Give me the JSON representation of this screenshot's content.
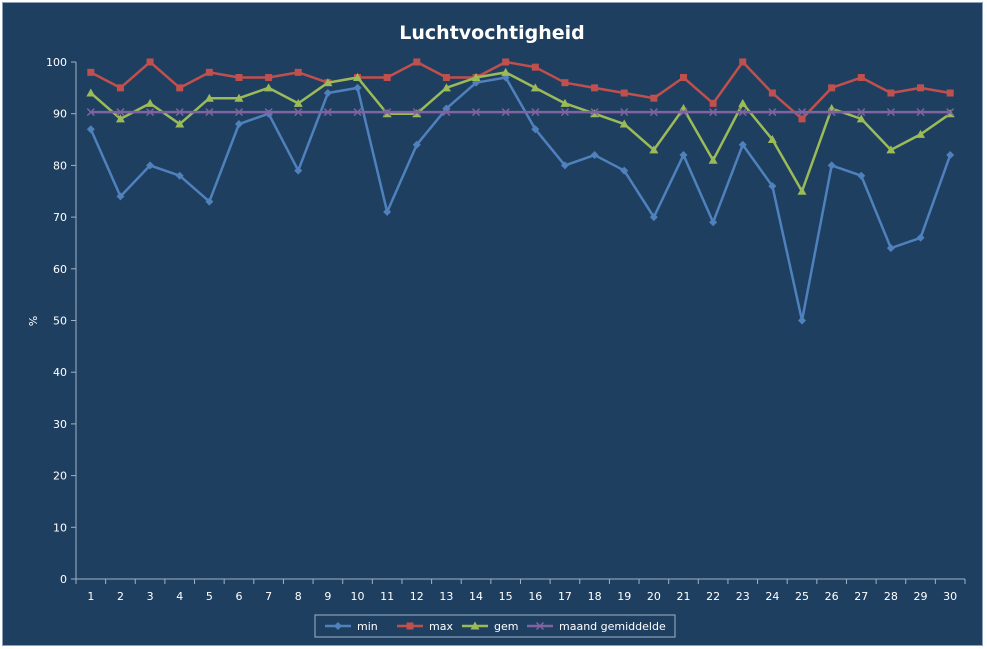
{
  "chart_data": {
    "type": "line",
    "title": "Luchtvochtigheid",
    "xlabel": "",
    "ylabel": "%",
    "ylim": [
      0,
      100
    ],
    "yticks": [
      0,
      10,
      20,
      30,
      40,
      50,
      60,
      70,
      80,
      90,
      100
    ],
    "categories": [
      "1",
      "2",
      "3",
      "4",
      "5",
      "6",
      "7",
      "8",
      "9",
      "10",
      "11",
      "12",
      "13",
      "14",
      "15",
      "16",
      "17",
      "18",
      "19",
      "20",
      "21",
      "22",
      "23",
      "24",
      "25",
      "26",
      "27",
      "28",
      "29",
      "30"
    ],
    "grid": "horizontal-none",
    "legend_position": "bottom",
    "series": [
      {
        "name": "min",
        "color": "#4f81bd",
        "marker": "diamond",
        "values": [
          87,
          74,
          80,
          78,
          73,
          88,
          90,
          79,
          94,
          95,
          71,
          84,
          91,
          96,
          97,
          87,
          80,
          82,
          79,
          70,
          82,
          69,
          84,
          76,
          50,
          80,
          78,
          64,
          66,
          82
        ]
      },
      {
        "name": "max",
        "color": "#c0504d",
        "marker": "square",
        "values": [
          98,
          95,
          100,
          95,
          98,
          97,
          97,
          98,
          96,
          97,
          97,
          100,
          97,
          97,
          100,
          99,
          96,
          95,
          94,
          93,
          97,
          92,
          100,
          94,
          89,
          95,
          97,
          94,
          95,
          94
        ]
      },
      {
        "name": "gem",
        "color": "#9bbb59",
        "marker": "triangle",
        "values": [
          94,
          89,
          92,
          88,
          93,
          93,
          95,
          92,
          96,
          97,
          90,
          90,
          95,
          97,
          98,
          95,
          92,
          90,
          88,
          83,
          91,
          81,
          92,
          85,
          75,
          91,
          89,
          83,
          86,
          90
        ]
      },
      {
        "name": "maand gemiddelde",
        "color": "#8064a2",
        "marker": "x",
        "values": [
          90.3,
          90.3,
          90.3,
          90.3,
          90.3,
          90.3,
          90.3,
          90.3,
          90.3,
          90.3,
          90.3,
          90.3,
          90.3,
          90.3,
          90.3,
          90.3,
          90.3,
          90.3,
          90.3,
          90.3,
          90.3,
          90.3,
          90.3,
          90.3,
          90.3,
          90.3,
          90.3,
          90.3,
          90.3,
          90.3
        ]
      }
    ]
  }
}
